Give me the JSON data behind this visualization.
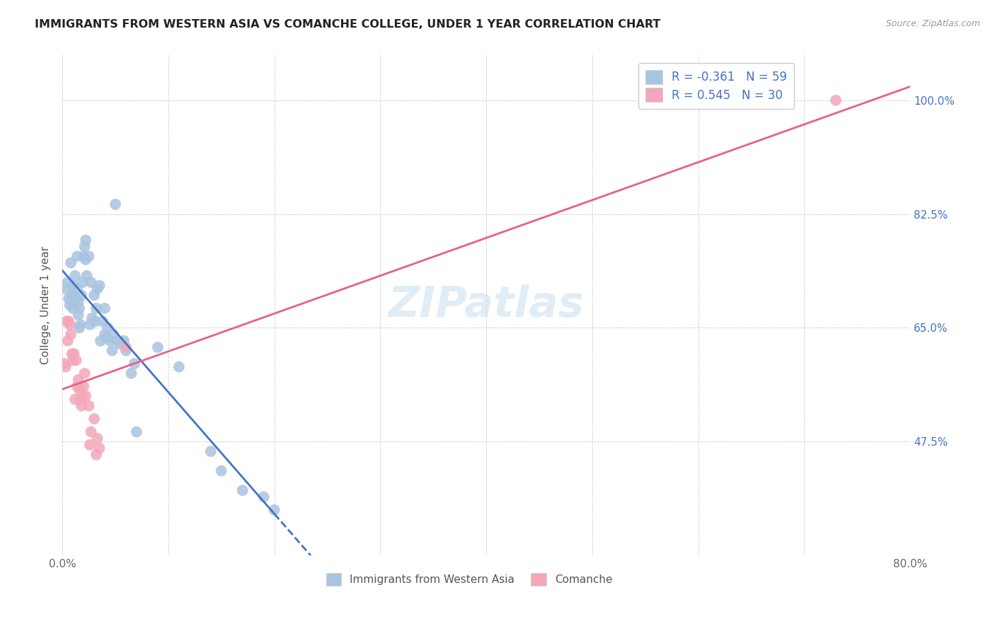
{
  "title": "IMMIGRANTS FROM WESTERN ASIA VS COMANCHE COLLEGE, UNDER 1 YEAR CORRELATION CHART",
  "source": "Source: ZipAtlas.com",
  "ylabel": "College, Under 1 year",
  "xlim": [
    0.0,
    80.0
  ],
  "ylim": [
    30.0,
    107.0
  ],
  "xtick_positions": [
    0.0,
    10.0,
    20.0,
    30.0,
    40.0,
    50.0,
    60.0,
    70.0,
    80.0
  ],
  "xticklabels": [
    "0.0%",
    "",
    "",
    "",
    "",
    "",
    "",
    "",
    "80.0%"
  ],
  "ytick_positions": [
    47.5,
    65.0,
    82.5,
    100.0
  ],
  "ytick_labels": [
    "47.5%",
    "65.0%",
    "82.5%",
    "100.0%"
  ],
  "legend_label_blue": "Immigrants from Western Asia",
  "legend_label_pink": "Comanche",
  "blue_color": "#a8c4e0",
  "pink_color": "#f4a7b9",
  "trend_blue": "#4472c4",
  "trend_pink": "#e8608a",
  "watermark": "ZIPatlas",
  "blue_R": "-0.361",
  "blue_N": "59",
  "pink_R": "0.545",
  "pink_N": "30",
  "blue_scatter": [
    [
      0.3,
      71.0
    ],
    [
      0.5,
      72.0
    ],
    [
      0.6,
      69.5
    ],
    [
      0.7,
      68.5
    ],
    [
      0.8,
      75.0
    ],
    [
      0.9,
      70.0
    ],
    [
      1.0,
      68.0
    ],
    [
      1.0,
      71.5
    ],
    [
      1.1,
      70.0
    ],
    [
      1.2,
      73.0
    ],
    [
      1.2,
      69.5
    ],
    [
      1.3,
      68.5
    ],
    [
      1.4,
      71.0
    ],
    [
      1.4,
      76.0
    ],
    [
      1.5,
      69.0
    ],
    [
      1.5,
      67.0
    ],
    [
      1.6,
      65.0
    ],
    [
      1.6,
      68.0
    ],
    [
      1.7,
      65.5
    ],
    [
      1.8,
      70.0
    ],
    [
      1.9,
      72.0
    ],
    [
      2.0,
      76.0
    ],
    [
      2.1,
      77.5
    ],
    [
      2.2,
      78.5
    ],
    [
      2.2,
      75.5
    ],
    [
      2.3,
      73.0
    ],
    [
      2.5,
      76.0
    ],
    [
      2.6,
      65.5
    ],
    [
      2.7,
      72.0
    ],
    [
      2.8,
      66.5
    ],
    [
      3.0,
      70.0
    ],
    [
      3.1,
      66.0
    ],
    [
      3.2,
      68.0
    ],
    [
      3.3,
      71.0
    ],
    [
      3.5,
      71.5
    ],
    [
      3.6,
      63.0
    ],
    [
      3.8,
      66.0
    ],
    [
      4.0,
      68.0
    ],
    [
      4.0,
      64.0
    ],
    [
      4.2,
      63.5
    ],
    [
      4.3,
      65.0
    ],
    [
      4.5,
      63.0
    ],
    [
      4.7,
      61.5
    ],
    [
      4.8,
      64.0
    ],
    [
      5.0,
      84.0
    ],
    [
      5.2,
      63.0
    ],
    [
      5.5,
      62.5
    ],
    [
      5.8,
      63.0
    ],
    [
      6.0,
      61.5
    ],
    [
      6.5,
      58.0
    ],
    [
      6.8,
      59.5
    ],
    [
      7.0,
      49.0
    ],
    [
      9.0,
      62.0
    ],
    [
      11.0,
      59.0
    ],
    [
      14.0,
      46.0
    ],
    [
      15.0,
      43.0
    ],
    [
      17.0,
      40.0
    ],
    [
      19.0,
      39.0
    ],
    [
      20.0,
      37.0
    ]
  ],
  "pink_scatter": [
    [
      0.2,
      59.5
    ],
    [
      0.3,
      59.0
    ],
    [
      0.4,
      66.0
    ],
    [
      0.5,
      63.0
    ],
    [
      0.6,
      66.0
    ],
    [
      0.7,
      65.5
    ],
    [
      0.8,
      64.0
    ],
    [
      0.9,
      61.0
    ],
    [
      1.0,
      60.0
    ],
    [
      1.1,
      61.0
    ],
    [
      1.2,
      54.0
    ],
    [
      1.3,
      60.0
    ],
    [
      1.4,
      56.0
    ],
    [
      1.5,
      57.0
    ],
    [
      1.6,
      55.5
    ],
    [
      1.7,
      54.0
    ],
    [
      1.8,
      53.0
    ],
    [
      1.9,
      54.5
    ],
    [
      2.0,
      56.0
    ],
    [
      2.1,
      58.0
    ],
    [
      2.2,
      54.5
    ],
    [
      2.5,
      53.0
    ],
    [
      2.6,
      47.0
    ],
    [
      2.7,
      49.0
    ],
    [
      3.0,
      51.0
    ],
    [
      3.2,
      45.5
    ],
    [
      3.3,
      48.0
    ],
    [
      3.5,
      46.5
    ],
    [
      6.0,
      62.0
    ],
    [
      73.0,
      100.0
    ]
  ]
}
